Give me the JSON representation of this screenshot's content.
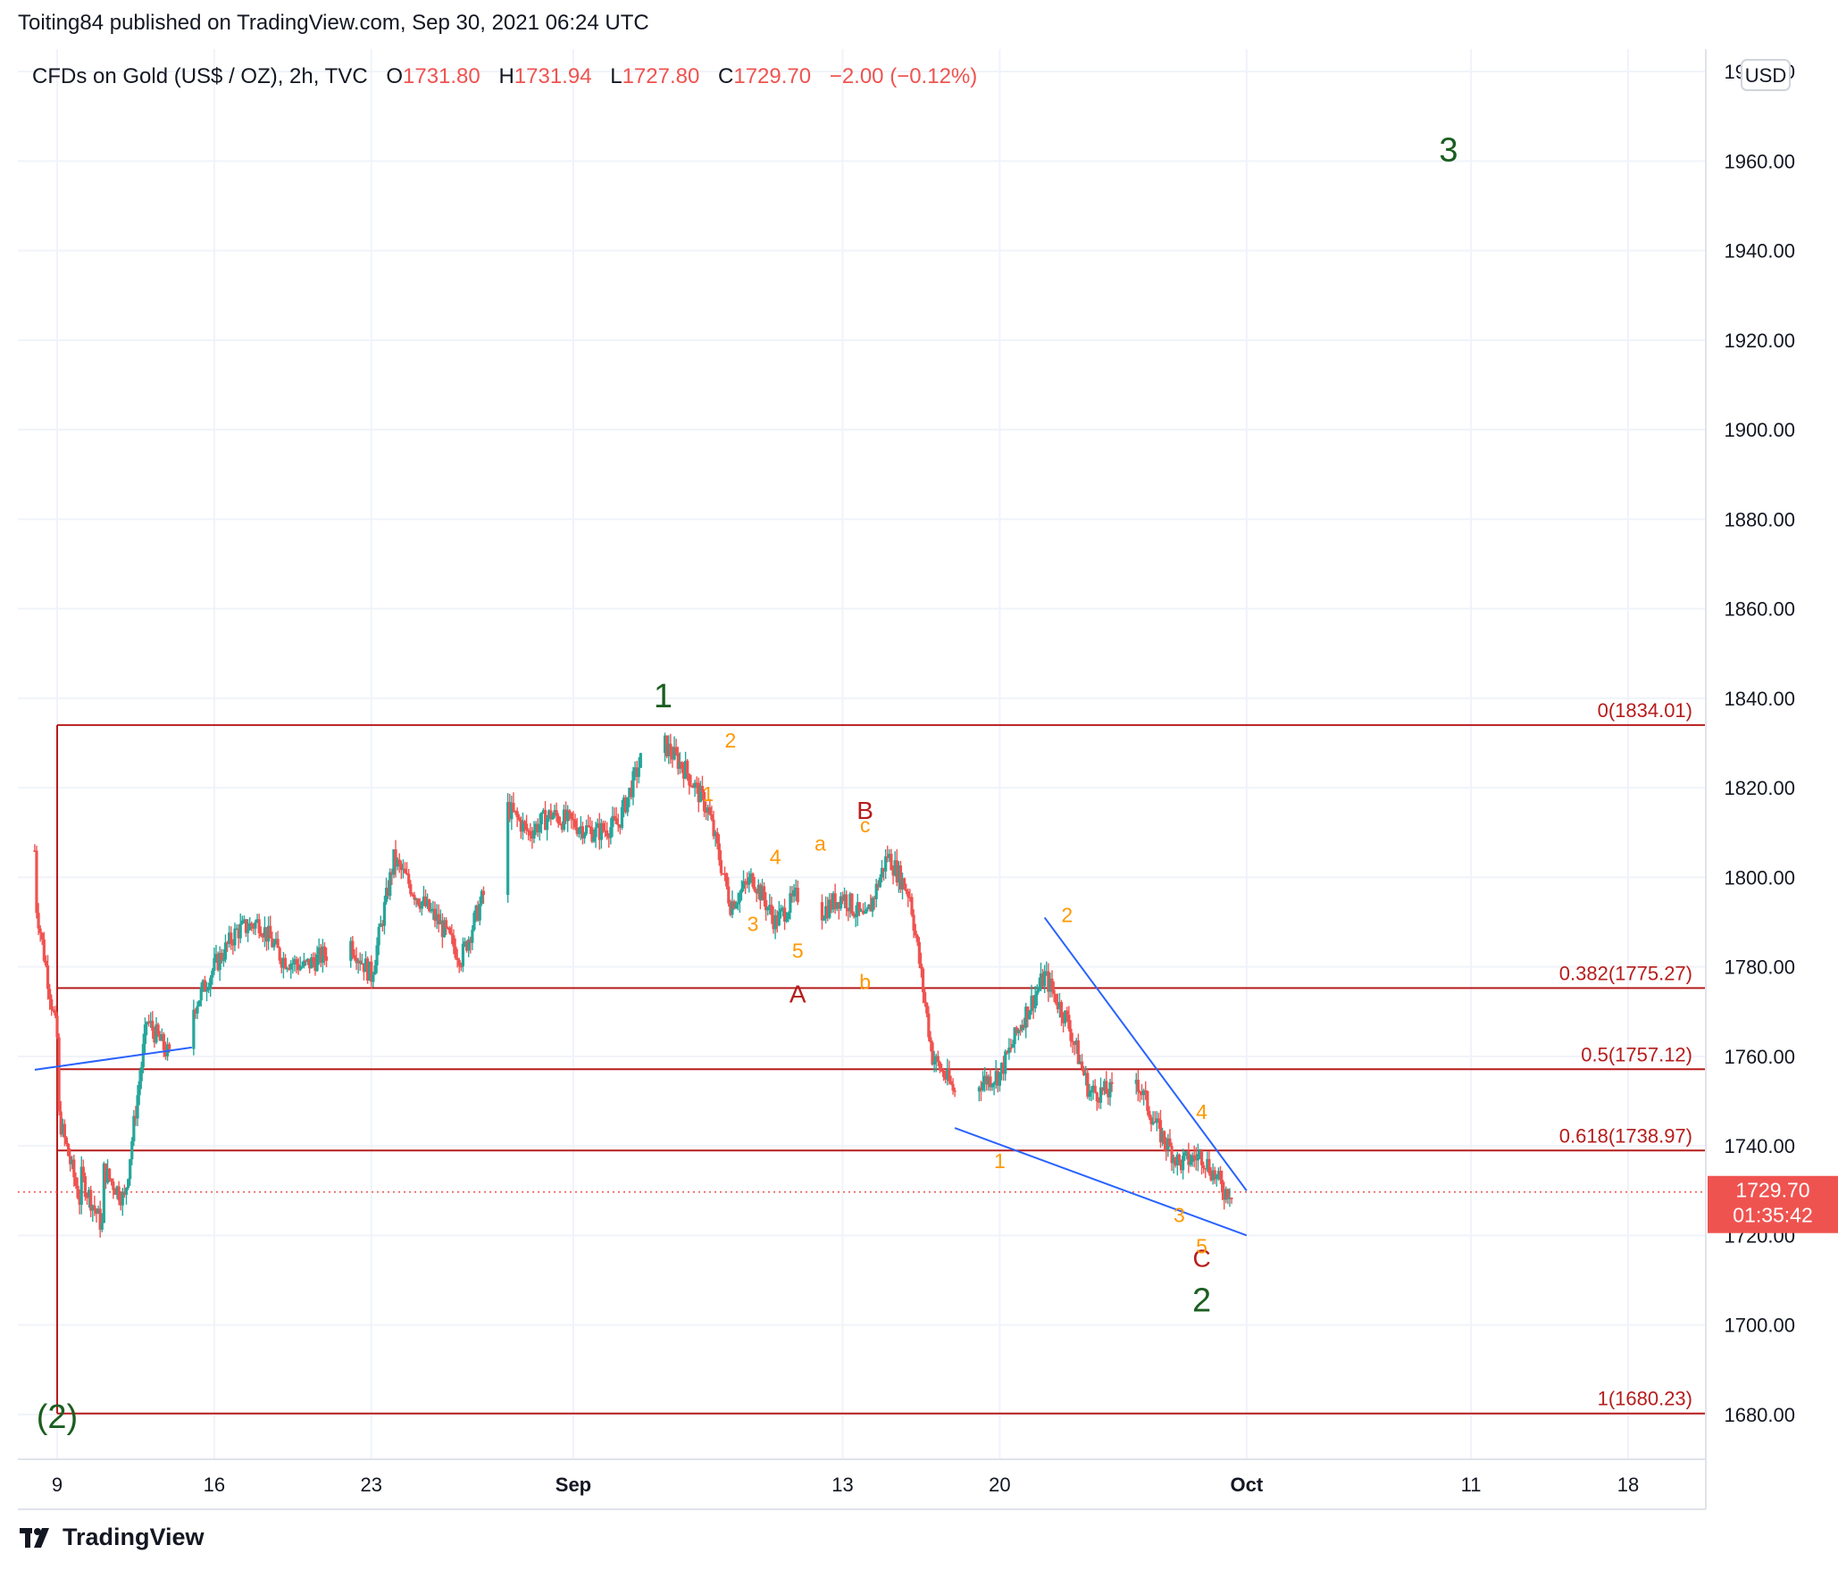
{
  "header": {
    "publisher_text": "Toiting84 published on TradingView.com, Sep 30, 2021 06:24 UTC"
  },
  "legend": {
    "symbol": "CFDs on Gold (US$ / OZ), 2h, TVC",
    "open_label": "O",
    "open": "1731.80",
    "high_label": "H",
    "high": "1731.94",
    "low_label": "L",
    "low": "1727.80",
    "close_label": "C",
    "close": "1729.70",
    "change": "−2.00 (−0.12%)"
  },
  "price_axis": {
    "currency": "USD",
    "last_price": "1729.70",
    "countdown": "01:35:42"
  },
  "footer": {
    "brand": "TradingView"
  },
  "colors": {
    "up": "#26a69a",
    "down": "#ef5350",
    "fib": "#b71c1c",
    "trend": "#2962ff",
    "wave_major": "#1b5e20",
    "wave_minor": "#ff9800",
    "wave_inter": "#b71c1c",
    "grid": "#f0f3fa"
  },
  "chart_data": {
    "type": "candlestick",
    "symbol": "CFDs on Gold (US$ / OZ)",
    "interval": "2h",
    "ylim": [
      1670,
      1985
    ],
    "y_ticks": [
      1680,
      1700,
      1720,
      1740,
      1760,
      1780,
      1800,
      1820,
      1840,
      1860,
      1880,
      1900,
      1920,
      1940,
      1960,
      1980
    ],
    "x_ticks": [
      {
        "label": "9",
        "date": "2021-08-09"
      },
      {
        "label": "16",
        "date": "2021-08-16"
      },
      {
        "label": "23",
        "date": "2021-08-23"
      },
      {
        "label": "Sep",
        "date": "2021-09-01"
      },
      {
        "label": "13",
        "date": "2021-09-13"
      },
      {
        "label": "20",
        "date": "2021-09-20"
      },
      {
        "label": "Oct",
        "date": "2021-10-01"
      },
      {
        "label": "11",
        "date": "2021-10-11"
      },
      {
        "label": "18",
        "date": "2021-10-18"
      }
    ],
    "price_path": [
      [
        "2021-08-08",
        1806
      ],
      [
        "2021-08-08",
        1796
      ],
      [
        "2021-08-09",
        1764
      ],
      [
        "2021-08-09",
        1690
      ],
      [
        "2021-08-09",
        1748
      ],
      [
        "2021-08-10",
        1728
      ],
      [
        "2021-08-10",
        1734
      ],
      [
        "2021-08-11",
        1722
      ],
      [
        "2021-08-11",
        1735
      ],
      [
        "2021-08-12",
        1728
      ],
      [
        "2021-08-13",
        1768
      ],
      [
        "2021-08-14",
        1760
      ],
      [
        "2021-08-15",
        1770
      ],
      [
        "2021-08-16",
        1780
      ],
      [
        "2021-08-17",
        1788
      ],
      [
        "2021-08-18",
        1790
      ],
      [
        "2021-08-19",
        1782
      ],
      [
        "2021-08-20",
        1780
      ],
      [
        "2021-08-22",
        1786
      ],
      [
        "2021-08-23",
        1778
      ],
      [
        "2021-08-24",
        1804
      ],
      [
        "2021-08-25",
        1796
      ],
      [
        "2021-08-26",
        1790
      ],
      [
        "2021-08-27",
        1782
      ],
      [
        "2021-08-28",
        1796
      ],
      [
        "2021-08-29",
        1816
      ],
      [
        "2021-08-30",
        1810
      ],
      [
        "2021-08-31",
        1814
      ],
      [
        "2021-09-01",
        1812
      ],
      [
        "2021-09-02",
        1810
      ],
      [
        "2021-09-03",
        1812
      ],
      [
        "2021-09-04",
        1826
      ],
      [
        "2021-09-05",
        1830
      ],
      [
        "2021-09-06",
        1824
      ],
      [
        "2021-09-07",
        1815
      ],
      [
        "2021-09-08",
        1794
      ],
      [
        "2021-09-09",
        1800
      ],
      [
        "2021-09-10",
        1790
      ],
      [
        "2021-09-11",
        1796
      ],
      [
        "2021-09-12",
        1792
      ],
      [
        "2021-09-13",
        1796
      ],
      [
        "2021-09-14",
        1790
      ],
      [
        "2021-09-15",
        1805
      ],
      [
        "2021-09-16",
        1796
      ],
      [
        "2021-09-17",
        1760
      ],
      [
        "2021-09-18",
        1752
      ],
      [
        "2021-09-19",
        1754
      ],
      [
        "2021-09-20",
        1756
      ],
      [
        "2021-09-21",
        1768
      ],
      [
        "2021-09-22",
        1778
      ],
      [
        "2021-09-23",
        1768
      ],
      [
        "2021-09-24",
        1752
      ],
      [
        "2021-09-25",
        1752
      ],
      [
        "2021-09-26",
        1756
      ],
      [
        "2021-09-27",
        1744
      ],
      [
        "2021-09-28",
        1736
      ],
      [
        "2021-09-29",
        1738
      ],
      [
        "2021-09-30",
        1730
      ]
    ],
    "fib_levels": [
      {
        "label": "0(1834.01)",
        "value": 1834.01
      },
      {
        "label": "0.382(1775.27)",
        "value": 1775.27
      },
      {
        "label": "0.5(1757.12)",
        "value": 1757.12
      },
      {
        "label": "0.618(1738.97)",
        "value": 1738.97
      },
      {
        "label": "1(1680.23)",
        "value": 1680.23
      }
    ],
    "fib_start_date": "2021-08-09",
    "last_price": 1729.7,
    "trendlines": [
      {
        "from": [
          "2021-08-08",
          1757
        ],
        "to": [
          "2021-08-15",
          1762
        ]
      },
      {
        "from": [
          "2021-09-22",
          1791
        ],
        "to": [
          "2021-10-01",
          1730
        ]
      },
      {
        "from": [
          "2021-09-18",
          1744
        ],
        "to": [
          "2021-10-01",
          1720
        ]
      }
    ],
    "wave_labels": [
      {
        "text": "(2)",
        "date": "2021-08-09",
        "price": 1677,
        "level": "major"
      },
      {
        "text": "1",
        "date": "2021-09-05",
        "price": 1838,
        "level": "major"
      },
      {
        "text": "2",
        "date": "2021-09-29",
        "price": 1703,
        "level": "major"
      },
      {
        "text": "3",
        "date": "2021-10-10",
        "price": 1960,
        "level": "major"
      },
      {
        "text": "A",
        "date": "2021-09-11",
        "price": 1772,
        "level": "inter"
      },
      {
        "text": "B",
        "date": "2021-09-14",
        "price": 1813,
        "level": "inter"
      },
      {
        "text": "C",
        "date": "2021-09-29",
        "price": 1713,
        "level": "inter"
      },
      {
        "text": "1",
        "date": "2021-09-07",
        "price": 1817,
        "level": "minor"
      },
      {
        "text": "2",
        "date": "2021-09-08",
        "price": 1829,
        "level": "minor"
      },
      {
        "text": "3",
        "date": "2021-09-09",
        "price": 1788,
        "level": "minor"
      },
      {
        "text": "4",
        "date": "2021-09-10",
        "price": 1803,
        "level": "minor"
      },
      {
        "text": "5",
        "date": "2021-09-11",
        "price": 1782,
        "level": "minor"
      },
      {
        "text": "a",
        "date": "2021-09-12",
        "price": 1806,
        "level": "minor"
      },
      {
        "text": "b",
        "date": "2021-09-14",
        "price": 1775,
        "level": "minor"
      },
      {
        "text": "c",
        "date": "2021-09-14",
        "price": 1810,
        "level": "minor"
      },
      {
        "text": "1",
        "date": "2021-09-20",
        "price": 1735,
        "level": "minor"
      },
      {
        "text": "2",
        "date": "2021-09-23",
        "price": 1790,
        "level": "minor"
      },
      {
        "text": "3",
        "date": "2021-09-28",
        "price": 1723,
        "level": "minor"
      },
      {
        "text": "4",
        "date": "2021-09-29",
        "price": 1746,
        "level": "minor"
      },
      {
        "text": "5",
        "date": "2021-09-29",
        "price": 1716,
        "level": "minor"
      }
    ]
  }
}
